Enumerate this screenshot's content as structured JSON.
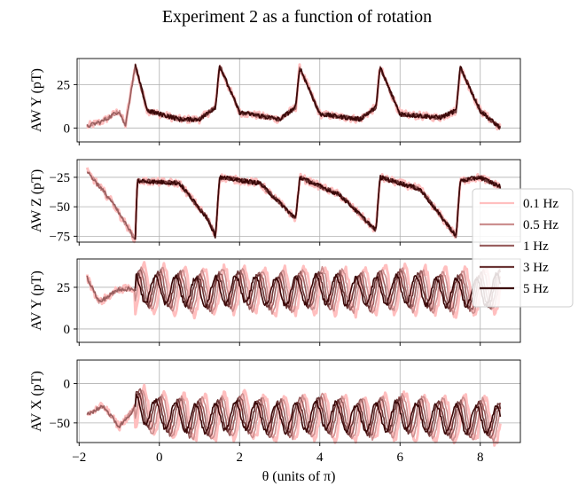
{
  "chart_data": {
    "type": "line",
    "title": "Experiment 2 as a function of rotation",
    "xlabel": "θ (units of π)",
    "x_range": [
      -2.05,
      9.0
    ],
    "x_ticks": [
      -2,
      0,
      2,
      4,
      6,
      8
    ],
    "grid": true,
    "legend": {
      "placement": "right",
      "entries": [
        {
          "label": "0.1 Hz",
          "color": "#ffbfbf"
        },
        {
          "label": "0.5 Hz",
          "color": "#cc8f8f"
        },
        {
          "label": "1 Hz",
          "color": "#9a5f5f"
        },
        {
          "label": "3 Hz",
          "color": "#6a3535"
        },
        {
          "label": "5 Hz",
          "color": "#3a0808"
        }
      ]
    },
    "panels": [
      {
        "ylabel": "AW Y (pT)",
        "ylim": [
          -8,
          40
        ],
        "y_ticks": [
          0,
          25
        ],
        "series_keypoints": {
          "x": [
            -1.8,
            -1.4,
            -1.0,
            -0.85,
            -0.6,
            -0.3,
            0.5,
            1.0,
            1.4,
            1.5,
            2.0,
            3.0,
            3.4,
            3.5,
            4.0,
            5.0,
            5.4,
            5.5,
            6.0,
            7.0,
            7.4,
            7.5,
            8.0,
            8.5
          ],
          "y": [
            1,
            4,
            10,
            1,
            36,
            10,
            5,
            5,
            12,
            36,
            9,
            5,
            12,
            35,
            8,
            5,
            12,
            35,
            8,
            6,
            10,
            35,
            10,
            0
          ]
        }
      },
      {
        "ylabel": "AW Z (pT)",
        "ylim": [
          -80,
          -10
        ],
        "y_ticks": [
          -75,
          -50,
          -25
        ],
        "series_keypoints": {
          "x": [
            -1.8,
            -1.2,
            -0.6,
            -0.55,
            0.5,
            1.2,
            1.4,
            1.5,
            2.5,
            3.4,
            3.5,
            4.5,
            5.4,
            5.5,
            6.5,
            7.4,
            7.5,
            8.0,
            8.5
          ],
          "y": [
            -20,
            -45,
            -78,
            -28,
            -30,
            -60,
            -75,
            -25,
            -30,
            -60,
            -25,
            -40,
            -70,
            -25,
            -35,
            -75,
            -28,
            -25,
            -33
          ]
        }
      },
      {
        "ylabel": "AV Y (pT)",
        "ylim": [
          -8,
          42
        ],
        "y_ticks": [
          0,
          25
        ],
        "series_keypoints": {
          "x": [
            -1.8,
            -1.5,
            -1.0,
            -0.6,
            0.0,
            1.0,
            2.0,
            3.0,
            4.0,
            5.0,
            6.0,
            7.0,
            8.0,
            8.5
          ],
          "y": [
            31,
            16,
            24,
            24,
            24,
            22,
            24,
            22,
            24,
            22,
            24,
            22,
            22,
            25
          ]
        }
      },
      {
        "ylabel": "AV X (pT)",
        "ylim": [
          -75,
          30
        ],
        "y_ticks": [
          -50,
          0
        ],
        "series_keypoints": {
          "x": [
            -1.8,
            -1.4,
            -1.0,
            -0.6,
            0.0,
            1.0,
            2.0,
            3.0,
            4.0,
            5.0,
            6.0,
            7.0,
            8.0,
            8.5
          ],
          "y": [
            -40,
            -28,
            -55,
            -30,
            -40,
            -45,
            -40,
            -45,
            -40,
            -45,
            -40,
            -45,
            -45,
            -48
          ]
        }
      }
    ]
  }
}
